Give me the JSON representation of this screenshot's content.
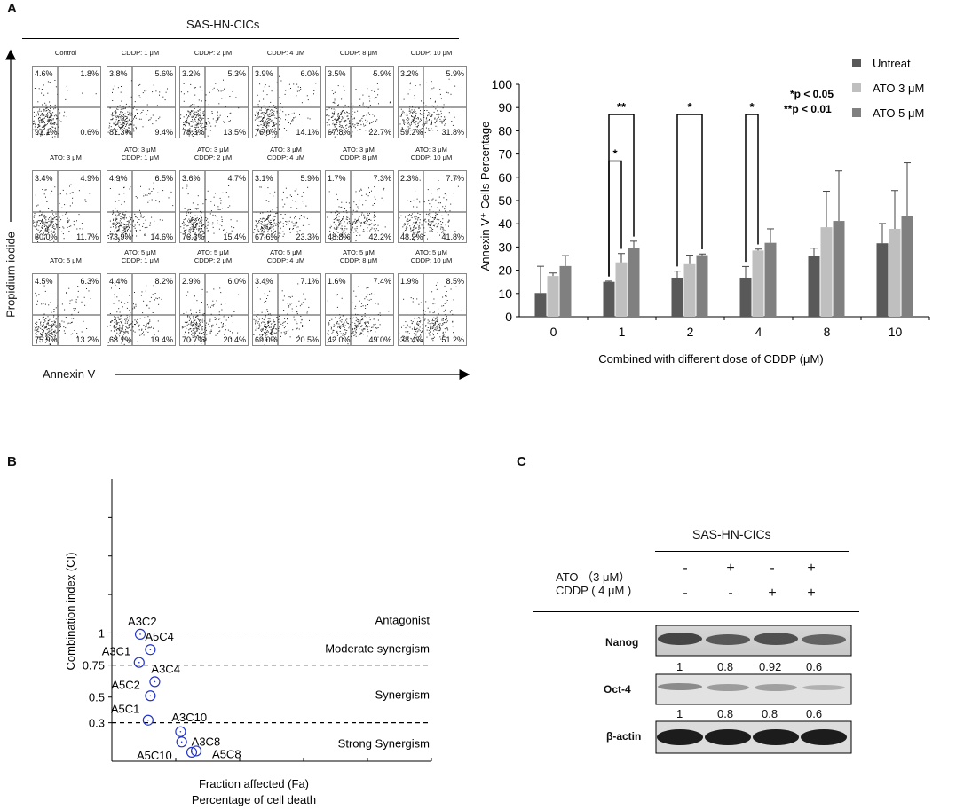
{
  "panel_labels": {
    "a": "A",
    "b": "B",
    "c": "C"
  },
  "panelA": {
    "flow_header": "SAS-HN-CICs",
    "y_axis_label": "Propidium iodide",
    "x_axis_label": "Annexin V",
    "rows": [
      [
        {
          "title": [
            "Control"
          ],
          "ul": "4.6%",
          "ur": "1.8%",
          "ll": "93.1%",
          "lr": "0.6%"
        },
        {
          "title": [
            "CDDP: 1 μM"
          ],
          "ul": "3.8%",
          "ur": "5.6%",
          "ll": "81.3%",
          "lr": "9.4%"
        },
        {
          "title": [
            "CDDP: 2 μM"
          ],
          "ul": "3.2%",
          "ur": "5.3%",
          "ll": "78.0%",
          "lr": "13.5%"
        },
        {
          "title": [
            "CDDP: 4 μM"
          ],
          "ul": "3.9%",
          "ur": "6.0%",
          "ll": "76.0%",
          "lr": "14.1%"
        },
        {
          "title": [
            "CDDP: 8 μM"
          ],
          "ul": "3.5%",
          "ur": "5.9%",
          "ll": "67.8%",
          "lr": "22.7%"
        },
        {
          "title": [
            "CDDP: 10 μM"
          ],
          "ul": "3.2%",
          "ur": "5.9%",
          "ll": "59.2%",
          "lr": "31.8%"
        }
      ],
      [
        {
          "title": [
            "ATO: 3 μM"
          ],
          "ul": "3.4%",
          "ur": "4.9%",
          "ll": "80.0%",
          "lr": "11.7%"
        },
        {
          "title": [
            "ATO: 3 μM",
            "CDDP: 1 μM"
          ],
          "ul": "4.9%",
          "ur": "6.5%",
          "ll": "73.9%",
          "lr": "14.6%"
        },
        {
          "title": [
            "ATO: 3 μM",
            "CDDP: 2 μM"
          ],
          "ul": "3.6%",
          "ur": "4.7%",
          "ll": "76.3%",
          "lr": "15.4%"
        },
        {
          "title": [
            "ATO: 3 μM",
            "CDDP: 4 μM"
          ],
          "ul": "3.1%",
          "ur": "5.9%",
          "ll": "67.6%",
          "lr": "23.3%"
        },
        {
          "title": [
            "ATO: 3 μM",
            "CDDP: 8 μM"
          ],
          "ul": "1.7%",
          "ur": "7.3%",
          "ll": "48.8%",
          "lr": "42.2%"
        },
        {
          "title": [
            "ATO: 3 μM",
            "CDDP: 10 μM"
          ],
          "ul": "2.3%",
          "ur": "7.7%",
          "ll": "48.2%",
          "lr": "41.8%"
        }
      ],
      [
        {
          "title": [
            "ATO: 5 μM"
          ],
          "ul": "4.5%",
          "ur": "6.3%",
          "ll": "75.9%",
          "lr": "13.2%"
        },
        {
          "title": [
            "ATO: 5 μM",
            "CDDP: 1 μM"
          ],
          "ul": "4.4%",
          "ur": "8.2%",
          "ll": "68.1%",
          "lr": "19.4%"
        },
        {
          "title": [
            "ATO: 5 μM",
            "CDDP: 2 μM"
          ],
          "ul": "2.9%",
          "ur": "6.0%",
          "ll": "70.7%",
          "lr": "20.4%"
        },
        {
          "title": [
            "ATO: 5 μM",
            "CDDP: 4 μM"
          ],
          "ul": "3.4%",
          "ur": "7.1%",
          "ll": "69.0%",
          "lr": "20.5%"
        },
        {
          "title": [
            "ATO: 5 μM",
            "CDDP: 8 μM"
          ],
          "ul": "1.6%",
          "ur": "7.4%",
          "ll": "42.0%",
          "lr": "49.0%"
        },
        {
          "title": [
            "ATO: 5 μM",
            "CDDP: 10 μM"
          ],
          "ul": "1.9%",
          "ur": "8.5%",
          "ll": "38.4%",
          "lr": "51.2%"
        }
      ]
    ]
  },
  "chart_data": [
    {
      "type": "bar",
      "title": "",
      "xlabel": "Combined with different dose of CDDP (μM)",
      "ylabel": "Annexin V⁺ Cells Percentage",
      "ylim": [
        0,
        100
      ],
      "yticks": [
        0,
        10,
        20,
        30,
        40,
        50,
        60,
        70,
        80,
        90,
        100
      ],
      "categories": [
        "0",
        "1",
        "2",
        "4",
        "8",
        "10"
      ],
      "series": [
        {
          "name": "Untreat",
          "color": "#595959",
          "values": [
            10.2,
            15.0,
            16.8,
            16.8,
            26.0,
            31.6
          ],
          "errors": [
            11.5,
            0.3,
            2.8,
            4.8,
            3.5,
            8.5
          ]
        },
        {
          "name": "ATO 3 μM",
          "color": "#bfbfbf",
          "values": [
            17.5,
            23.4,
            22.6,
            28.5,
            38.5,
            37.8
          ],
          "errors": [
            1.3,
            3.8,
            3.9,
            0.6,
            15.5,
            16.5
          ]
        },
        {
          "name": "ATO 5 μM",
          "color": "#808080",
          "values": [
            21.8,
            29.5,
            26.5,
            31.8,
            41.2,
            43.2
          ],
          "errors": [
            4.5,
            3.0,
            0.5,
            6.0,
            21.5,
            23.0
          ]
        }
      ],
      "significance": [
        {
          "mark": "**",
          "category": "1",
          "compare": [
            "Untreat",
            "ATO 5 μM"
          ]
        },
        {
          "mark": "*",
          "category": "1",
          "compare": [
            "Untreat",
            "ATO 3 μM"
          ]
        },
        {
          "mark": "*",
          "category": "2",
          "compare": [
            "Untreat",
            "ATO 5 μM"
          ]
        },
        {
          "mark": "*",
          "category": "4",
          "compare": [
            "Untreat",
            "ATO 3 μM"
          ]
        }
      ],
      "annotations": [
        "*p < 0.05",
        "**p < 0.01"
      ]
    },
    {
      "type": "scatter",
      "title": "",
      "xlabel": "Fraction affected (Fa)",
      "xlabel2": "Percentage of cell death",
      "ylabel": "Combination index (CI)",
      "yticks": [
        {
          "value": 0.3,
          "label": "0.3"
        },
        {
          "value": 0.5,
          "label": "0.5"
        },
        {
          "value": 0.75,
          "label": "0.75"
        },
        {
          "value": 1,
          "label": "1"
        }
      ],
      "xlim": [
        0,
        1
      ],
      "ylim": [
        0,
        2.2
      ],
      "reference_lines": [
        {
          "value": 1,
          "style": "dotted"
        },
        {
          "value": 0.75,
          "style": "dashed"
        },
        {
          "value": 0.3,
          "style": "dashed"
        }
      ],
      "regions": [
        "Antagonist",
        "Moderate synergism",
        "Synergism",
        "Strong Synergism"
      ],
      "points": [
        {
          "label": "A3C2",
          "x": 0.24,
          "y": 0.99
        },
        {
          "label": "A5C4",
          "x": 0.33,
          "y": 0.87
        },
        {
          "label": "A3C1",
          "x": 0.23,
          "y": 0.77
        },
        {
          "label": "A3C4",
          "x": 0.37,
          "y": 0.62
        },
        {
          "label": "A5C2",
          "x": 0.33,
          "y": 0.51
        },
        {
          "label": "A5C1",
          "x": 0.31,
          "y": 0.32
        },
        {
          "label": "A3C10",
          "x": 0.6,
          "y": 0.23
        },
        {
          "label": "A3C8",
          "x": 0.61,
          "y": 0.15
        },
        {
          "label": "A5C10",
          "x": 0.7,
          "y": 0.07
        },
        {
          "label": "A5C8",
          "x": 0.74,
          "y": 0.08
        }
      ]
    }
  ],
  "panelB_regions": {
    "antagonist": "Antagonist",
    "moderate": "Moderate synergism",
    "synergism": "Synergism",
    "strong": "Strong Synergism"
  },
  "panelC": {
    "header": "SAS-HN-CICs",
    "ato_label": "ATO （3 μM）",
    "cddp_label": "CDDP ( 4 μM )",
    "ato_signs": [
      "-",
      "+",
      "-",
      "+"
    ],
    "cddp_signs": [
      "-",
      "-",
      "+",
      "+"
    ],
    "blots": [
      {
        "name": "Nanog",
        "values": [
          "1",
          "0.8",
          "0.92",
          "0.6"
        ]
      },
      {
        "name": "Oct-4",
        "values": [
          "1",
          "0.8",
          "0.8",
          "0.6"
        ]
      },
      {
        "name": "β-actin",
        "values": []
      }
    ]
  }
}
